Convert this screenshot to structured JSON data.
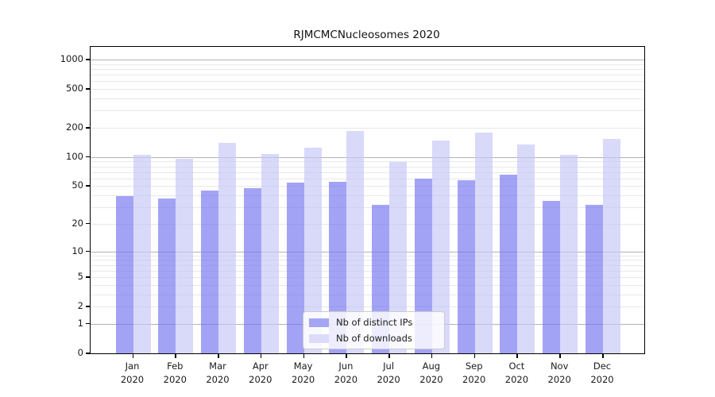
{
  "title": "RJMCMCNucleosomes 2020",
  "y_axis": {
    "tick_values": [
      0,
      1,
      2,
      5,
      10,
      20,
      50,
      100,
      200,
      500,
      1000
    ]
  },
  "x_axis": {
    "months": [
      "Jan",
      "Feb",
      "Mar",
      "Apr",
      "May",
      "Jun",
      "Jul",
      "Aug",
      "Sep",
      "Oct",
      "Nov",
      "Dec"
    ],
    "year": "2020"
  },
  "legend": {
    "items": [
      {
        "label": "Nb of distinct IPs",
        "color": "#a5a5f5"
      },
      {
        "label": "Nb of downloads",
        "color": "#dcdcfa"
      }
    ]
  },
  "colors": {
    "bar_ips_fill": "rgba(116,116,240,0.66)",
    "bar_downloads_fill": "rgba(198,198,248,0.66)",
    "grid_major": "#b3b3b3",
    "grid_minor": "#e8e8e8",
    "axis": "#000000"
  },
  "chart_data": {
    "type": "bar",
    "title": "RJMCMCNucleosomes 2020",
    "categories": [
      "Jan 2020",
      "Feb 2020",
      "Mar 2020",
      "Apr 2020",
      "May 2020",
      "Jun 2020",
      "Jul 2020",
      "Aug 2020",
      "Sep 2020",
      "Oct 2020",
      "Nov 2020",
      "Dec 2020"
    ],
    "series": [
      {
        "name": "Nb of distinct IPs",
        "values": [
          39,
          37,
          45,
          48,
          54,
          56,
          32,
          60,
          58,
          66,
          35,
          32
        ]
      },
      {
        "name": "Nb of downloads",
        "values": [
          105,
          97,
          140,
          107,
          125,
          186,
          89,
          148,
          180,
          135,
          105,
          154
        ]
      }
    ],
    "yscale": "log10(y+1)",
    "y_ticks": [
      0,
      1,
      2,
      5,
      10,
      20,
      50,
      100,
      200,
      500,
      1000
    ],
    "ylim": [
      0,
      1350
    ],
    "grid": true,
    "legend_position": "bottom-center"
  }
}
